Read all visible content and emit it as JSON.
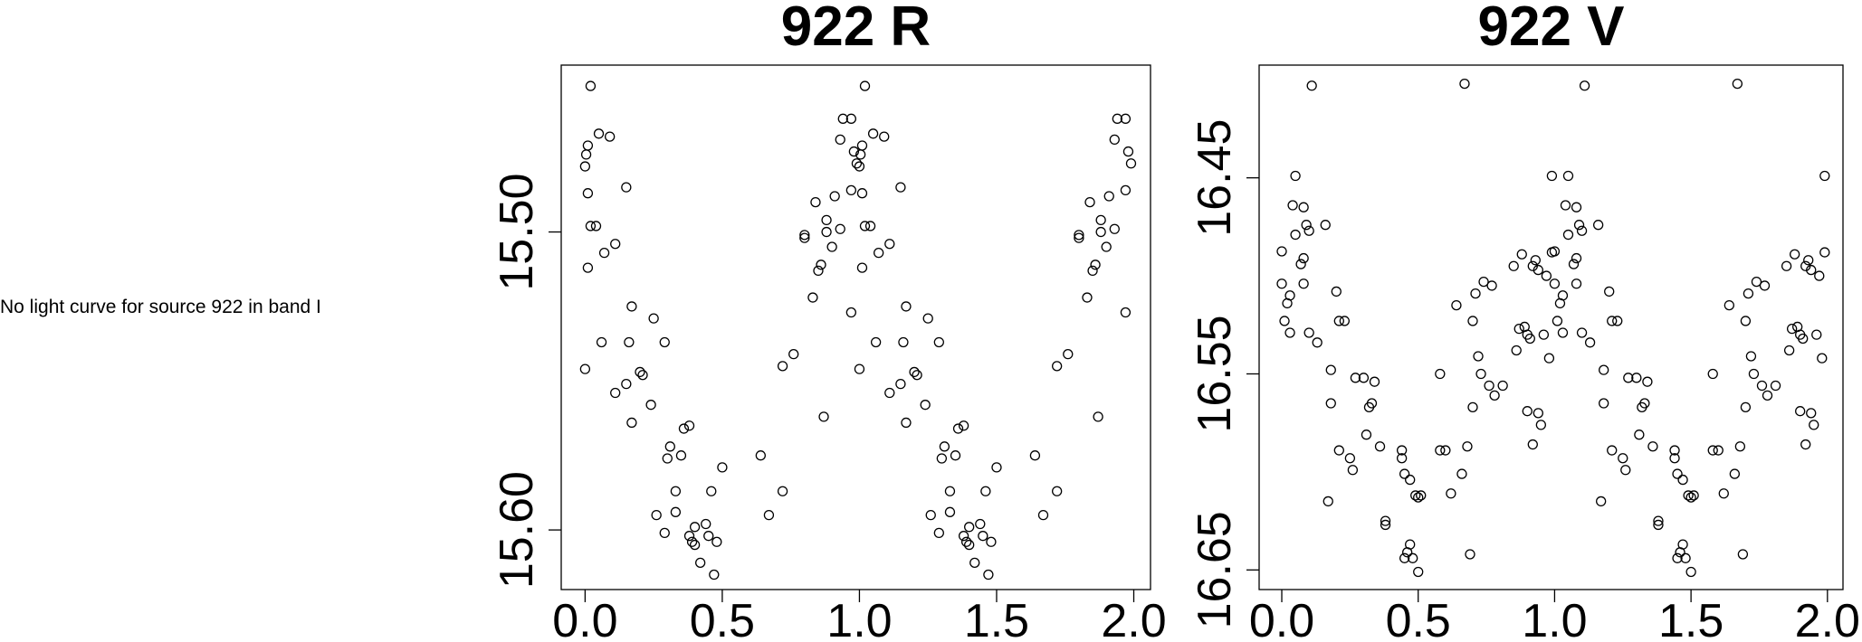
{
  "message": "No light curve for source 922 in band I",
  "chart_data": [
    {
      "type": "scatter",
      "title": "922 R",
      "x": [
        0,
        0,
        0.004,
        0.01,
        0.01,
        0.02,
        0.01,
        0.02,
        0.04,
        0.05,
        0.06,
        0.07,
        0.09,
        0.11,
        0.11,
        0.15,
        0.15,
        0.17,
        0.17,
        0.16,
        0.2,
        0.21,
        0.24,
        0.25,
        0.26,
        0.29,
        0.29,
        0.3,
        0.31,
        0.33,
        0.33,
        0.35,
        0.36,
        0.38,
        0.38,
        0.39,
        0.4,
        0.4,
        0.42,
        0.44,
        0.45,
        0.46,
        0.47,
        0.48,
        0.5,
        0.64,
        0.67,
        0.72,
        0.72,
        0.76,
        0.8,
        0.8,
        0.83,
        0.84,
        0.85,
        0.86,
        0.87,
        0.88,
        0.88,
        0.9,
        0.91,
        0.93,
        0.93,
        0.94,
        0.97,
        0.97,
        0.97,
        0.98,
        0.99,
        1,
        1,
        1.004,
        1.01,
        1.01,
        1.02,
        1.01,
        1.02,
        1.04,
        1.05,
        1.06,
        1.07,
        1.09,
        1.11,
        1.11,
        1.15,
        1.15,
        1.17,
        1.17,
        1.16,
        1.2,
        1.21,
        1.24,
        1.25,
        1.26,
        1.29,
        1.29,
        1.3,
        1.31,
        1.33,
        1.33,
        1.35,
        1.36,
        1.38,
        1.38,
        1.39,
        1.4,
        1.4,
        1.42,
        1.44,
        1.45,
        1.46,
        1.47,
        1.48,
        1.5,
        1.64,
        1.67,
        1.72,
        1.72,
        1.76,
        1.8,
        1.8,
        1.83,
        1.84,
        1.85,
        1.86,
        1.87,
        1.88,
        1.88,
        1.9,
        1.91,
        1.93,
        1.93,
        1.94,
        1.97,
        1.97,
        1.97,
        1.98,
        1.99
      ],
      "values": [
        15.546,
        15.478,
        15.474,
        15.471,
        15.487,
        15.498,
        15.512,
        15.451,
        15.498,
        15.467,
        15.537,
        15.507,
        15.468,
        15.504,
        15.554,
        15.485,
        15.551,
        15.525,
        15.564,
        15.537,
        15.547,
        15.548,
        15.558,
        15.529,
        15.595,
        15.601,
        15.537,
        15.576,
        15.572,
        15.594,
        15.587,
        15.575,
        15.566,
        15.565,
        15.602,
        15.604,
        15.599,
        15.605,
        15.611,
        15.598,
        15.602,
        15.587,
        15.615,
        15.604,
        15.579,
        15.575,
        15.595,
        15.587,
        15.545,
        15.541,
        15.501,
        15.502,
        15.522,
        15.49,
        15.513,
        15.511,
        15.562,
        15.496,
        15.5,
        15.505,
        15.488,
        15.499,
        15.469,
        15.462,
        15.462,
        15.527,
        15.486,
        15.473,
        15.477,
        15.546,
        15.478,
        15.474,
        15.471,
        15.487,
        15.498,
        15.512,
        15.451,
        15.498,
        15.467,
        15.537,
        15.507,
        15.468,
        15.504,
        15.554,
        15.485,
        15.551,
        15.525,
        15.564,
        15.537,
        15.547,
        15.548,
        15.558,
        15.529,
        15.595,
        15.601,
        15.537,
        15.576,
        15.572,
        15.594,
        15.587,
        15.575,
        15.566,
        15.565,
        15.602,
        15.604,
        15.599,
        15.605,
        15.611,
        15.598,
        15.602,
        15.587,
        15.615,
        15.604,
        15.579,
        15.575,
        15.595,
        15.587,
        15.545,
        15.541,
        15.501,
        15.502,
        15.522,
        15.49,
        15.513,
        15.511,
        15.562,
        15.496,
        15.5,
        15.505,
        15.488,
        15.499,
        15.469,
        15.462,
        15.462,
        15.527,
        15.486,
        15.473,
        15.477
      ],
      "color": "#000000",
      "xlim": [
        -0.087,
        2.061
      ],
      "ylim": [
        15.62,
        15.444
      ],
      "xticks": [
        {
          "value": 0,
          "label": "0.0"
        },
        0.5,
        {
          "value": 1,
          "label": "1.0"
        },
        1.5,
        {
          "value": 2,
          "label": "2.0"
        }
      ],
      "yticks": [
        {
          "value": 15.5,
          "label": "15.50"
        },
        {
          "value": 15.6,
          "label": "15.60"
        }
      ]
    },
    {
      "type": "scatter",
      "title": "922 V",
      "x": [
        0,
        0,
        0.01,
        0.02,
        0.03,
        0.03,
        0.04,
        0.05,
        0.05,
        0.07,
        0.08,
        0.08,
        0.08,
        0.09,
        0.1,
        0.1,
        0.11,
        0.13,
        0.16,
        0.17,
        0.18,
        0.18,
        0.2,
        0.21,
        0.23,
        0.21,
        0.25,
        0.26,
        0.27,
        0.3,
        0.31,
        0.32,
        0.33,
        0.34,
        0.36,
        0.38,
        0.38,
        0.44,
        0.44,
        0.45,
        0.45,
        0.46,
        0.47,
        0.47,
        0.48,
        0.49,
        0.5,
        0.5,
        0.51,
        0.58,
        0.58,
        0.6,
        0.62,
        0.64,
        0.66,
        0.68,
        0.67,
        0.69,
        0.7,
        0.7,
        0.71,
        0.72,
        0.73,
        0.74,
        0.76,
        0.77,
        0.78,
        0.81,
        0.85,
        0.86,
        0.87,
        0.88,
        0.89,
        0.9,
        0.9,
        0.91,
        0.92,
        0.92,
        0.93,
        0.94,
        0.94,
        0.95,
        0.96,
        0.97,
        0.98,
        0.99,
        0.99,
        1,
        1,
        1.01,
        1.02,
        1.03,
        1.03,
        1.04,
        1.05,
        1.05,
        1.07,
        1.08,
        1.08,
        1.08,
        1.09,
        1.1,
        1.1,
        1.11,
        1.13,
        1.16,
        1.17,
        1.18,
        1.18,
        1.2,
        1.21,
        1.23,
        1.21,
        1.25,
        1.26,
        1.27,
        1.3,
        1.31,
        1.32,
        1.33,
        1.34,
        1.36,
        1.38,
        1.38,
        1.44,
        1.44,
        1.45,
        1.45,
        1.46,
        1.47,
        1.47,
        1.48,
        1.49,
        1.5,
        1.5,
        1.51,
        1.58,
        1.58,
        1.6,
        1.62,
        1.64,
        1.66,
        1.68,
        1.67,
        1.69,
        1.7,
        1.7,
        1.71,
        1.72,
        1.73,
        1.74,
        1.76,
        1.77,
        1.78,
        1.81,
        1.85,
        1.86,
        1.87,
        1.88,
        1.89,
        1.9,
        1.9,
        1.91,
        1.92,
        1.92,
        1.93,
        1.94,
        1.94,
        1.95,
        1.96,
        1.97,
        1.98,
        1.99,
        1.99
      ],
      "values": [
        16.4875,
        16.504,
        16.523,
        16.514,
        16.51,
        16.529,
        16.464,
        16.449,
        16.479,
        16.494,
        16.504,
        16.491,
        16.465,
        16.474,
        16.477,
        16.529,
        16.403,
        16.534,
        16.474,
        16.615,
        16.565,
        16.548,
        16.508,
        16.523,
        16.523,
        16.589,
        16.593,
        16.599,
        16.552,
        16.552,
        16.581,
        16.567,
        16.565,
        16.554,
        16.587,
        16.627,
        16.625,
        16.589,
        16.593,
        16.601,
        16.644,
        16.641,
        16.604,
        16.637,
        16.644,
        16.612,
        16.613,
        16.651,
        16.612,
        16.589,
        16.55,
        16.589,
        16.611,
        16.515,
        16.601,
        16.587,
        16.402,
        16.642,
        16.567,
        16.523,
        16.509,
        16.541,
        16.55,
        16.503,
        16.556,
        16.505,
        16.561,
        16.556,
        16.495,
        16.538,
        16.527,
        16.489,
        16.526,
        16.569,
        16.53,
        16.532,
        16.586,
        16.495,
        16.492,
        16.497,
        16.57,
        16.576,
        16.53,
        16.5,
        16.542,
        16.488,
        16.449,
        16.4875,
        16.504,
        16.523,
        16.514,
        16.51,
        16.529,
        16.464,
        16.449,
        16.479,
        16.494,
        16.504,
        16.491,
        16.465,
        16.474,
        16.477,
        16.529,
        16.403,
        16.534,
        16.474,
        16.615,
        16.565,
        16.548,
        16.508,
        16.523,
        16.523,
        16.589,
        16.593,
        16.599,
        16.552,
        16.552,
        16.581,
        16.567,
        16.565,
        16.554,
        16.587,
        16.627,
        16.625,
        16.589,
        16.593,
        16.601,
        16.644,
        16.641,
        16.604,
        16.637,
        16.644,
        16.612,
        16.613,
        16.651,
        16.612,
        16.589,
        16.55,
        16.589,
        16.611,
        16.515,
        16.601,
        16.587,
        16.402,
        16.642,
        16.567,
        16.523,
        16.509,
        16.541,
        16.55,
        16.503,
        16.556,
        16.505,
        16.561,
        16.556,
        16.495,
        16.538,
        16.527,
        16.489,
        16.526,
        16.569,
        16.53,
        16.532,
        16.586,
        16.495,
        16.492,
        16.497,
        16.57,
        16.576,
        16.53,
        16.5,
        16.542,
        16.488,
        16.449
      ],
      "color": "#000000",
      "xlim": [
        -0.083,
        2.057
      ],
      "ylim": [
        16.66,
        16.3925
      ],
      "xticks": [
        {
          "value": 0,
          "label": "0.0"
        },
        0.5,
        {
          "value": 1,
          "label": "1.0"
        },
        1.5,
        {
          "value": 2,
          "label": "2.0"
        }
      ],
      "yticks": [
        16.45,
        16.55,
        16.65
      ]
    }
  ]
}
